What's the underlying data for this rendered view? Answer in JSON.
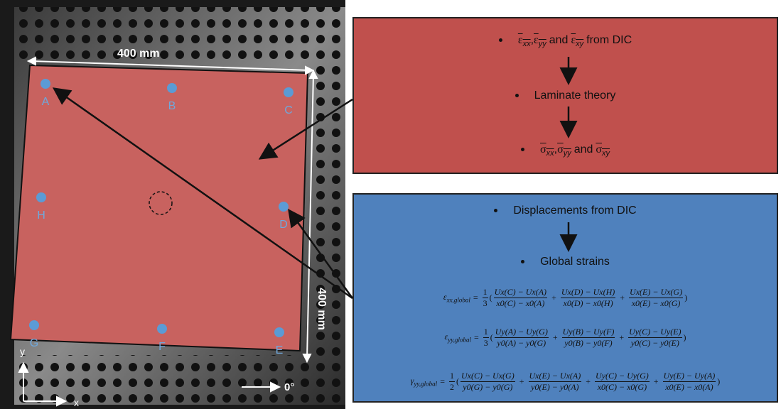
{
  "photo": {
    "width_label": "400 mm",
    "height_label": "400 mm",
    "points": [
      "A",
      "B",
      "C",
      "H",
      "D",
      "G",
      "F",
      "E"
    ],
    "axis_y": "y",
    "axis_x": "x",
    "angle": "0°"
  },
  "red_box": {
    "line1": {
      "items": [
        {
          "symbol": "ε",
          "sub": "xx"
        },
        {
          "symbol": "ε",
          "sub": "yy"
        },
        {
          "symbol": "ε",
          "sub": "xy"
        }
      ],
      "sep": ",",
      "and": "and",
      "suffix": "from DIC"
    },
    "line2": "Laminate theory",
    "line3": {
      "items": [
        {
          "symbol": "σ",
          "sub": "xx"
        },
        {
          "symbol": "σ",
          "sub": "yy"
        },
        {
          "symbol": "σ",
          "sub": "xy"
        }
      ],
      "sep": ",",
      "and": "and"
    }
  },
  "blue_box": {
    "line1": "Displacements from DIC",
    "line2": "Global strains",
    "formulas": [
      {
        "lhs": "ε",
        "lhs_sub": "xx,global",
        "eq": "=",
        "coef_num": "1",
        "coef_den": "3",
        "open": "(",
        "close": ")",
        "plus": "+",
        "terms": [
          {
            "num": "Ux(C) − Ux(A)",
            "den": "x0(C) − x0(A)"
          },
          {
            "num": "Ux(D) − Ux(H)",
            "den": "x0(D) − x0(H)"
          },
          {
            "num": "Ux(E) − Ux(G)",
            "den": "x0(E) − x0(G)"
          }
        ]
      },
      {
        "lhs": "ε",
        "lhs_sub": "yy,global",
        "eq": "=",
        "coef_num": "1",
        "coef_den": "3",
        "open": "(",
        "close": ")",
        "plus": "+",
        "terms": [
          {
            "num": "Uy(A) − Uy(G)",
            "den": "y0(A) − y0(G)"
          },
          {
            "num": "Uy(B) − Uy(F)",
            "den": "y0(B) − y0(F)"
          },
          {
            "num": "Uy(C) − Uy(E)",
            "den": "y0(C) − y0(E)"
          }
        ]
      },
      {
        "lhs": "γ",
        "lhs_sub": "yy,global",
        "eq": "=",
        "coef_num": "1",
        "coef_den": "2",
        "open": "(",
        "close": ")",
        "plus": "+",
        "terms": [
          {
            "num": "Ux(C) − Ux(G)",
            "den": "y0(G) − y0(G)"
          },
          {
            "num": "Ux(E) − Ux(A)",
            "den": "y0(E) − y0(A)"
          },
          {
            "num": "Uy(C) − Uy(G)",
            "den": "x0(C) − x0(G)"
          },
          {
            "num": "Uy(E) − Uy(A)",
            "den": "x0(E) − x0(A)"
          }
        ]
      }
    ]
  }
}
